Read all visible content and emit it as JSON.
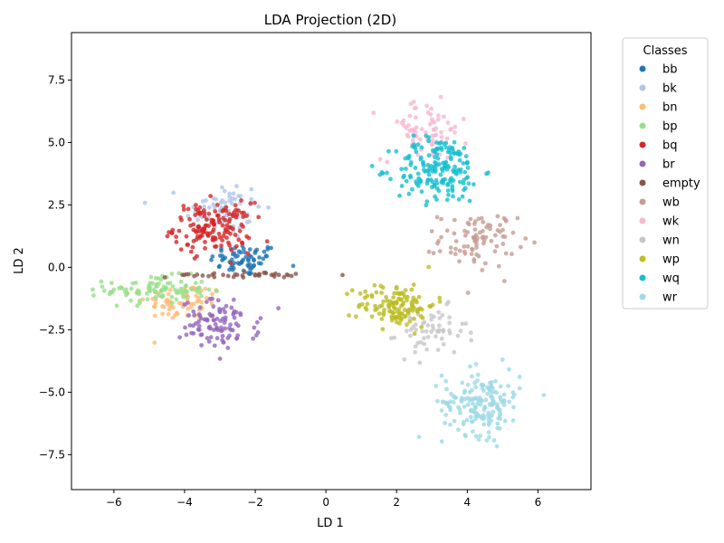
{
  "chart_data": {
    "type": "scatter",
    "title": "LDA Projection (2D)",
    "xlabel": "LD 1",
    "ylabel": "LD 2",
    "xlim": [
      -7.2,
      7.5
    ],
    "ylim": [
      -8.9,
      9.4
    ],
    "xticks": [
      -6,
      -4,
      -2,
      0,
      2,
      4,
      6
    ],
    "xtick_labels": [
      "−6",
      "−4",
      "−2",
      "0",
      "2",
      "4",
      "6"
    ],
    "yticks": [
      -7.5,
      -5.0,
      -2.5,
      0.0,
      2.5,
      5.0,
      7.5
    ],
    "ytick_labels": [
      "−7.5",
      "−5.0",
      "−2.5",
      "0.0",
      "2.5",
      "5.0",
      "7.5"
    ],
    "grid": false,
    "legend": {
      "title": "Classes",
      "placement": "outside-right"
    },
    "series": [
      {
        "name": "bb",
        "color": "#1f77b4",
        "count": 70,
        "center": [
          -2.3,
          0.3
        ],
        "spread": [
          0.9,
          0.6
        ]
      },
      {
        "name": "bk",
        "color": "#aec7e8",
        "count": 70,
        "center": [
          -2.9,
          2.3
        ],
        "spread": [
          1.0,
          1.1
        ]
      },
      {
        "name": "bn",
        "color": "#ffbb78",
        "count": 70,
        "center": [
          -4.0,
          -1.4
        ],
        "spread": [
          1.0,
          0.7
        ]
      },
      {
        "name": "bp",
        "color": "#98df8a",
        "count": 100,
        "center": [
          -4.8,
          -0.9
        ],
        "spread": [
          1.3,
          0.5
        ]
      },
      {
        "name": "bq",
        "color": "#d62728",
        "count": 150,
        "center": [
          -3.2,
          1.6
        ],
        "spread": [
          1.0,
          0.9
        ]
      },
      {
        "name": "br",
        "color": "#9467bd",
        "count": 100,
        "center": [
          -3.0,
          -2.3
        ],
        "spread": [
          1.0,
          0.9
        ]
      },
      {
        "name": "empty",
        "color": "#8c564b",
        "count": 40,
        "center": [
          -2.5,
          -0.3
        ],
        "spread": [
          1.8,
          0.1
        ]
      },
      {
        "name": "wb",
        "color": "#c49c94",
        "count": 90,
        "center": [
          4.3,
          1.1
        ],
        "spread": [
          1.0,
          1.0
        ]
      },
      {
        "name": "wk",
        "color": "#f7b6d2",
        "count": 70,
        "center": [
          2.8,
          5.5
        ],
        "spread": [
          1.1,
          1.1
        ]
      },
      {
        "name": "wn",
        "color": "#c7c7c7",
        "count": 60,
        "center": [
          3.0,
          -2.6
        ],
        "spread": [
          0.9,
          0.9
        ]
      },
      {
        "name": "wp",
        "color": "#bcbd22",
        "count": 130,
        "center": [
          2.0,
          -1.5
        ],
        "spread": [
          1.0,
          0.8
        ]
      },
      {
        "name": "wq",
        "color": "#17becf",
        "count": 180,
        "center": [
          3.2,
          3.9
        ],
        "spread": [
          1.1,
          1.2
        ]
      },
      {
        "name": "wr",
        "color": "#9edae5",
        "count": 170,
        "center": [
          4.4,
          -5.4
        ],
        "spread": [
          1.0,
          1.2
        ]
      }
    ]
  }
}
